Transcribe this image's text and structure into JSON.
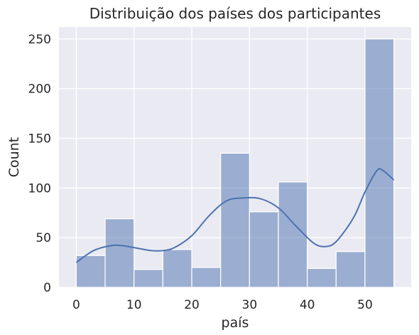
{
  "chart_data": {
    "type": "bar",
    "title": "Distribuição dos países dos participantes",
    "xlabel": "país",
    "ylabel": "Count",
    "xlim": [
      -3,
      58
    ],
    "ylim": [
      0,
      262
    ],
    "xticks": [
      0,
      10,
      20,
      30,
      40,
      50
    ],
    "yticks": [
      0,
      50,
      100,
      150,
      200,
      250
    ],
    "grid": true,
    "bins": [
      {
        "x0": 0,
        "x1": 5,
        "count": 32
      },
      {
        "x0": 5,
        "x1": 10,
        "count": 69
      },
      {
        "x0": 10,
        "x1": 15,
        "count": 18
      },
      {
        "x0": 15,
        "x1": 20,
        "count": 38
      },
      {
        "x0": 20,
        "x1": 25,
        "count": 20
      },
      {
        "x0": 25,
        "x1": 30,
        "count": 135
      },
      {
        "x0": 30,
        "x1": 35,
        "count": 76
      },
      {
        "x0": 35,
        "x1": 40,
        "count": 106
      },
      {
        "x0": 40,
        "x1": 45,
        "count": 19
      },
      {
        "x0": 45,
        "x1": 50,
        "count": 36
      },
      {
        "x0": 50,
        "x1": 55,
        "count": 250
      }
    ],
    "kde": {
      "x": [
        0,
        3,
        6,
        8,
        10,
        13,
        15,
        17,
        20,
        23,
        26,
        29,
        32,
        35,
        38,
        41,
        43,
        45,
        48,
        50,
        52,
        53,
        55
      ],
      "y": [
        25,
        37,
        42,
        42,
        40,
        37,
        37,
        40,
        52,
        72,
        87,
        90,
        89,
        80,
        62,
        45,
        41,
        46,
        70,
        96,
        117,
        118,
        108
      ]
    },
    "colors": {
      "bar": "#4c72b0",
      "line": "#4c72b0",
      "background": "#eaeaf2",
      "grid": "#ffffff"
    }
  }
}
